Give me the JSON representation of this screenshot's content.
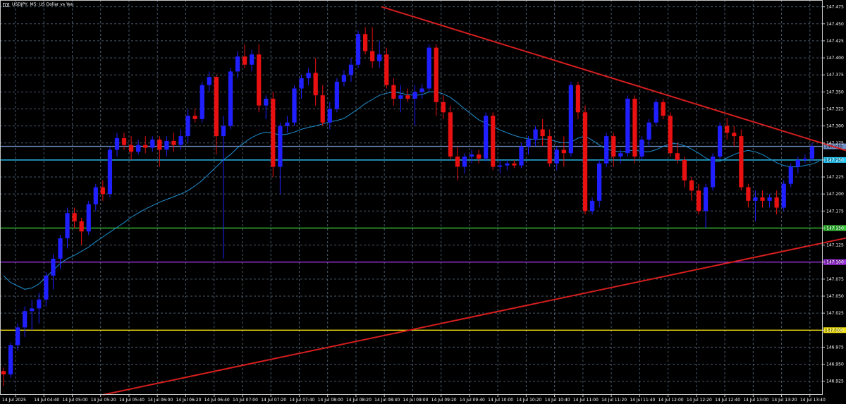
{
  "window": {
    "symbol": "USDJPY",
    "timeframe": "M5",
    "description": "US Dollar vs Yen",
    "title_text": "USDJPY, M5:  US Dollar vs Yen"
  },
  "colors": {
    "background": "#000000",
    "grid": "#4a5a6b",
    "axis_text": "#ffffff",
    "bull_candle": "#1f1fff",
    "bear_candle": "#e81010",
    "ma_line": "#1e8fd0",
    "trendline": "#d41e1e"
  },
  "chart_data": {
    "type": "candlestick",
    "title": "USDJPY, M5:  US Dollar vs Yen",
    "y_ticks": [
      "147.475",
      "147.450",
      "147.425",
      "147.400",
      "147.375",
      "147.350",
      "147.325",
      "147.300",
      "147.275",
      "147.250",
      "147.225",
      "147.200",
      "147.175",
      "147.150",
      "147.125",
      "147.100",
      "147.075",
      "147.050",
      "147.025",
      "147.000",
      "146.975",
      "146.950",
      "146.925"
    ],
    "x_ticks": [
      "14 Jul 2025",
      "14 Jul 04:40",
      "14 Jul 05:00",
      "14 Jul 05:20",
      "14 Jul 05:40",
      "14 Jul 06:00",
      "14 Jul 06:20",
      "14 Jul 06:40",
      "14 Jul 07:00",
      "14 Jul 07:20",
      "14 Jul 07:40",
      "14 Jul 08:00",
      "14 Jul 08:20",
      "14 Jul 08:40",
      "14 Jul 09:00",
      "14 Jul 09:20",
      "14 Jul 09:40",
      "14 Jul 10:00",
      "14 Jul 10:20",
      "14 Jul 10:40",
      "14 Jul 11:00",
      "14 Jul 11:20",
      "14 Jul 11:40",
      "14 Jul 12:00",
      "14 Jul 12:20",
      "14 Jul 12:40",
      "14 Jul 13:00",
      "14 Jul 13:20",
      "14 Jul 13:40"
    ],
    "ylim": [
      146.905,
      147.485
    ],
    "bar_count": 116,
    "candles": [
      {
        "o": 146.94,
        "h": 146.945,
        "l": 146.918,
        "c": 146.935
      },
      {
        "o": 146.935,
        "h": 146.982,
        "l": 146.93,
        "c": 146.978
      },
      {
        "o": 146.978,
        "h": 147.01,
        "l": 146.97,
        "c": 147.004
      },
      {
        "o": 147.004,
        "h": 147.035,
        "l": 146.99,
        "c": 147.028
      },
      {
        "o": 147.028,
        "h": 147.045,
        "l": 147.0,
        "c": 147.032
      },
      {
        "o": 147.032,
        "h": 147.055,
        "l": 147.01,
        "c": 147.045
      },
      {
        "o": 147.045,
        "h": 147.085,
        "l": 147.035,
        "c": 147.08
      },
      {
        "o": 147.08,
        "h": 147.112,
        "l": 147.06,
        "c": 147.105
      },
      {
        "o": 147.105,
        "h": 147.14,
        "l": 147.09,
        "c": 147.135
      },
      {
        "o": 147.135,
        "h": 147.18,
        "l": 147.12,
        "c": 147.172
      },
      {
        "o": 147.172,
        "h": 147.18,
        "l": 147.15,
        "c": 147.16
      },
      {
        "o": 147.16,
        "h": 147.165,
        "l": 147.125,
        "c": 147.145
      },
      {
        "o": 147.145,
        "h": 147.19,
        "l": 147.14,
        "c": 147.185
      },
      {
        "o": 147.185,
        "h": 147.215,
        "l": 147.175,
        "c": 147.21
      },
      {
        "o": 147.21,
        "h": 147.22,
        "l": 147.19,
        "c": 147.2
      },
      {
        "o": 147.2,
        "h": 147.27,
        "l": 147.195,
        "c": 147.265
      },
      {
        "o": 147.265,
        "h": 147.29,
        "l": 147.255,
        "c": 147.282
      },
      {
        "o": 147.282,
        "h": 147.29,
        "l": 147.265,
        "c": 147.272
      },
      {
        "o": 147.272,
        "h": 147.285,
        "l": 147.25,
        "c": 147.262
      },
      {
        "o": 147.262,
        "h": 147.28,
        "l": 147.258,
        "c": 147.272
      },
      {
        "o": 147.272,
        "h": 147.285,
        "l": 147.26,
        "c": 147.268
      },
      {
        "o": 147.268,
        "h": 147.285,
        "l": 147.262,
        "c": 147.28
      },
      {
        "o": 147.28,
        "h": 147.285,
        "l": 147.24,
        "c": 147.265
      },
      {
        "o": 147.265,
        "h": 147.285,
        "l": 147.255,
        "c": 147.278
      },
      {
        "o": 147.278,
        "h": 147.29,
        "l": 147.262,
        "c": 147.272
      },
      {
        "o": 147.272,
        "h": 147.295,
        "l": 147.265,
        "c": 147.285
      },
      {
        "o": 147.285,
        "h": 147.325,
        "l": 147.275,
        "c": 147.315
      },
      {
        "o": 147.315,
        "h": 147.325,
        "l": 147.305,
        "c": 147.31
      },
      {
        "o": 147.31,
        "h": 147.365,
        "l": 147.305,
        "c": 147.36
      },
      {
        "o": 147.36,
        "h": 147.38,
        "l": 147.35,
        "c": 147.372
      },
      {
        "o": 147.372,
        "h": 147.375,
        "l": 147.258,
        "c": 147.285
      },
      {
        "o": 147.285,
        "h": 147.315,
        "l": 147.105,
        "c": 147.3
      },
      {
        "o": 147.3,
        "h": 147.385,
        "l": 147.295,
        "c": 147.38
      },
      {
        "o": 147.38,
        "h": 147.41,
        "l": 147.37,
        "c": 147.402
      },
      {
        "o": 147.402,
        "h": 147.42,
        "l": 147.385,
        "c": 147.39
      },
      {
        "o": 147.39,
        "h": 147.412,
        "l": 147.38,
        "c": 147.405
      },
      {
        "o": 147.405,
        "h": 147.42,
        "l": 147.32,
        "c": 147.33
      },
      {
        "o": 147.33,
        "h": 147.345,
        "l": 147.31,
        "c": 147.34
      },
      {
        "o": 147.34,
        "h": 147.35,
        "l": 147.225,
        "c": 147.24
      },
      {
        "o": 147.24,
        "h": 147.305,
        "l": 147.2,
        "c": 147.3
      },
      {
        "o": 147.3,
        "h": 147.315,
        "l": 147.29,
        "c": 147.305
      },
      {
        "o": 147.305,
        "h": 147.36,
        "l": 147.3,
        "c": 147.355
      },
      {
        "o": 147.355,
        "h": 147.375,
        "l": 147.34,
        "c": 147.37
      },
      {
        "o": 147.37,
        "h": 147.385,
        "l": 147.36,
        "c": 147.378
      },
      {
        "o": 147.378,
        "h": 147.4,
        "l": 147.33,
        "c": 147.345
      },
      {
        "o": 147.345,
        "h": 147.36,
        "l": 147.3,
        "c": 147.305
      },
      {
        "o": 147.305,
        "h": 147.335,
        "l": 147.295,
        "c": 147.325
      },
      {
        "o": 147.325,
        "h": 147.37,
        "l": 147.32,
        "c": 147.365
      },
      {
        "o": 147.365,
        "h": 147.382,
        "l": 147.358,
        "c": 147.375
      },
      {
        "o": 147.375,
        "h": 147.4,
        "l": 147.365,
        "c": 147.39
      },
      {
        "o": 147.39,
        "h": 147.44,
        "l": 147.385,
        "c": 147.435
      },
      {
        "o": 147.435,
        "h": 147.445,
        "l": 147.405,
        "c": 147.41
      },
      {
        "o": 147.41,
        "h": 147.445,
        "l": 147.385,
        "c": 147.395
      },
      {
        "o": 147.395,
        "h": 147.425,
        "l": 147.385,
        "c": 147.405
      },
      {
        "o": 147.405,
        "h": 147.415,
        "l": 147.355,
        "c": 147.36
      },
      {
        "o": 147.36,
        "h": 147.37,
        "l": 147.33,
        "c": 147.34
      },
      {
        "o": 147.34,
        "h": 147.36,
        "l": 147.32,
        "c": 147.345
      },
      {
        "o": 147.345,
        "h": 147.355,
        "l": 147.335,
        "c": 147.34
      },
      {
        "o": 147.34,
        "h": 147.36,
        "l": 147.3,
        "c": 147.35
      },
      {
        "o": 147.35,
        "h": 147.362,
        "l": 147.34,
        "c": 147.355
      },
      {
        "o": 147.355,
        "h": 147.42,
        "l": 147.35,
        "c": 147.415
      },
      {
        "o": 147.415,
        "h": 147.42,
        "l": 147.315,
        "c": 147.335
      },
      {
        "o": 147.335,
        "h": 147.345,
        "l": 147.31,
        "c": 147.32
      },
      {
        "o": 147.32,
        "h": 147.33,
        "l": 147.25,
        "c": 147.255
      },
      {
        "o": 147.255,
        "h": 147.27,
        "l": 147.22,
        "c": 147.24
      },
      {
        "o": 147.24,
        "h": 147.26,
        "l": 147.23,
        "c": 147.255
      },
      {
        "o": 147.255,
        "h": 147.265,
        "l": 147.245,
        "c": 147.258
      },
      {
        "o": 147.258,
        "h": 147.265,
        "l": 147.245,
        "c": 147.252
      },
      {
        "o": 147.252,
        "h": 147.32,
        "l": 147.248,
        "c": 147.315
      },
      {
        "o": 147.315,
        "h": 147.32,
        "l": 147.235,
        "c": 147.24
      },
      {
        "o": 147.24,
        "h": 147.25,
        "l": 147.23,
        "c": 147.242
      },
      {
        "o": 147.242,
        "h": 147.25,
        "l": 147.235,
        "c": 147.245
      },
      {
        "o": 147.245,
        "h": 147.25,
        "l": 147.238,
        "c": 147.242
      },
      {
        "o": 147.242,
        "h": 147.275,
        "l": 147.238,
        "c": 147.27
      },
      {
        "o": 147.27,
        "h": 147.285,
        "l": 147.258,
        "c": 147.28
      },
      {
        "o": 147.28,
        "h": 147.3,
        "l": 147.27,
        "c": 147.295
      },
      {
        "o": 147.295,
        "h": 147.31,
        "l": 147.27,
        "c": 147.285
      },
      {
        "o": 147.285,
        "h": 147.295,
        "l": 147.24,
        "c": 147.245
      },
      {
        "o": 147.245,
        "h": 147.27,
        "l": 147.235,
        "c": 147.265
      },
      {
        "o": 147.265,
        "h": 147.285,
        "l": 147.24,
        "c": 147.26
      },
      {
        "o": 147.26,
        "h": 147.365,
        "l": 147.255,
        "c": 147.36
      },
      {
        "o": 147.36,
        "h": 147.365,
        "l": 147.31,
        "c": 147.32
      },
      {
        "o": 147.32,
        "h": 147.33,
        "l": 147.17,
        "c": 147.175
      },
      {
        "o": 147.175,
        "h": 147.195,
        "l": 147.17,
        "c": 147.19
      },
      {
        "o": 147.19,
        "h": 147.25,
        "l": 147.18,
        "c": 147.245
      },
      {
        "o": 147.245,
        "h": 147.29,
        "l": 147.24,
        "c": 147.285
      },
      {
        "o": 147.285,
        "h": 147.29,
        "l": 147.24,
        "c": 147.255
      },
      {
        "o": 147.255,
        "h": 147.265,
        "l": 147.245,
        "c": 147.26
      },
      {
        "o": 147.26,
        "h": 147.345,
        "l": 147.255,
        "c": 147.34
      },
      {
        "o": 147.34,
        "h": 147.345,
        "l": 147.245,
        "c": 147.255
      },
      {
        "o": 147.255,
        "h": 147.285,
        "l": 147.25,
        "c": 147.28
      },
      {
        "o": 147.28,
        "h": 147.31,
        "l": 147.27,
        "c": 147.305
      },
      {
        "o": 147.305,
        "h": 147.34,
        "l": 147.3,
        "c": 147.335
      },
      {
        "o": 147.335,
        "h": 147.34,
        "l": 147.31,
        "c": 147.315
      },
      {
        "o": 147.315,
        "h": 147.32,
        "l": 147.255,
        "c": 147.26
      },
      {
        "o": 147.26,
        "h": 147.275,
        "l": 147.245,
        "c": 147.25
      },
      {
        "o": 147.25,
        "h": 147.255,
        "l": 147.21,
        "c": 147.22
      },
      {
        "o": 147.22,
        "h": 147.225,
        "l": 147.19,
        "c": 147.205
      },
      {
        "o": 147.205,
        "h": 147.215,
        "l": 147.17,
        "c": 147.175
      },
      {
        "o": 147.175,
        "h": 147.215,
        "l": 147.15,
        "c": 147.21
      },
      {
        "o": 147.21,
        "h": 147.26,
        "l": 147.205,
        "c": 147.255
      },
      {
        "o": 147.255,
        "h": 147.305,
        "l": 147.25,
        "c": 147.3
      },
      {
        "o": 147.3,
        "h": 147.312,
        "l": 147.28,
        "c": 147.29
      },
      {
        "o": 147.29,
        "h": 147.3,
        "l": 147.27,
        "c": 147.285
      },
      {
        "o": 147.285,
        "h": 147.295,
        "l": 147.205,
        "c": 147.21
      },
      {
        "o": 147.21,
        "h": 147.215,
        "l": 147.18,
        "c": 147.19
      },
      {
        "o": 147.19,
        "h": 147.205,
        "l": 147.16,
        "c": 147.195
      },
      {
        "o": 147.195,
        "h": 147.205,
        "l": 147.18,
        "c": 147.19
      },
      {
        "o": 147.19,
        "h": 147.2,
        "l": 147.18,
        "c": 147.195
      },
      {
        "o": 147.195,
        "h": 147.205,
        "l": 147.17,
        "c": 147.18
      },
      {
        "o": 147.18,
        "h": 147.22,
        "l": 147.175,
        "c": 147.215
      },
      {
        "o": 147.215,
        "h": 147.245,
        "l": 147.21,
        "c": 147.24
      },
      {
        "o": 147.24,
        "h": 147.255,
        "l": 147.23,
        "c": 147.25
      },
      {
        "o": 147.25,
        "h": 147.258,
        "l": 147.245,
        "c": 147.252
      },
      {
        "o": 147.252,
        "h": 147.275,
        "l": 147.248,
        "c": 147.27
      }
    ],
    "moving_average": [
      147.08,
      147.07,
      147.065,
      147.06,
      147.062,
      147.068,
      147.078,
      147.088,
      147.098,
      147.105,
      147.11,
      147.116,
      147.122,
      147.13,
      147.137,
      147.144,
      147.151,
      147.158,
      147.166,
      147.172,
      147.178,
      147.183,
      147.188,
      147.192,
      147.196,
      147.2,
      147.205,
      147.212,
      147.22,
      147.23,
      147.24,
      147.25,
      147.258,
      147.268,
      147.276,
      147.283,
      147.288,
      147.291,
      147.289,
      147.287,
      147.288,
      147.291,
      147.295,
      147.298,
      147.3,
      147.303,
      147.306,
      147.308,
      147.311,
      147.318,
      147.325,
      147.333,
      147.339,
      147.345,
      147.348,
      147.35,
      147.348,
      147.346,
      147.345,
      147.346,
      147.35,
      147.35,
      147.347,
      147.342,
      147.334,
      147.325,
      147.317,
      147.309,
      147.304,
      147.299,
      147.294,
      147.29,
      147.286,
      147.283,
      147.281,
      147.28,
      147.281,
      147.28,
      147.277,
      147.275,
      147.276,
      147.282,
      147.285,
      147.279,
      147.272,
      147.266,
      147.263,
      147.262,
      147.263,
      147.265,
      147.262,
      147.262,
      147.265,
      147.27,
      147.274,
      147.274,
      147.271,
      147.266,
      147.26,
      147.253,
      147.248,
      147.248,
      147.253,
      147.258,
      147.262,
      147.264,
      147.262,
      147.258,
      147.252,
      147.246,
      147.242,
      147.24,
      147.24,
      147.242,
      147.244,
      147.248
    ],
    "horizontal_levels": [
      {
        "price": 147.27,
        "color": "#6f8ec4",
        "label": "147.270"
      },
      {
        "price": 147.25,
        "color": "#28c6f5",
        "label": "147.250"
      },
      {
        "price": 147.15,
        "color": "#3ac43a",
        "label": "147.150"
      },
      {
        "price": 147.1,
        "color": "#9a30d8",
        "label": "147.100"
      },
      {
        "price": 147.0,
        "color": "#f0e010",
        "label": "147.000"
      }
    ],
    "trendlines": [
      {
        "from": {
          "bar": 53.3,
          "price": 147.475
        },
        "to": {
          "bar": 120.0,
          "price": 147.26
        }
      },
      {
        "from": {
          "bar": 14.0,
          "price": 146.905
        },
        "to": {
          "bar": 120.0,
          "price": 147.138
        }
      }
    ],
    "grid": true
  }
}
